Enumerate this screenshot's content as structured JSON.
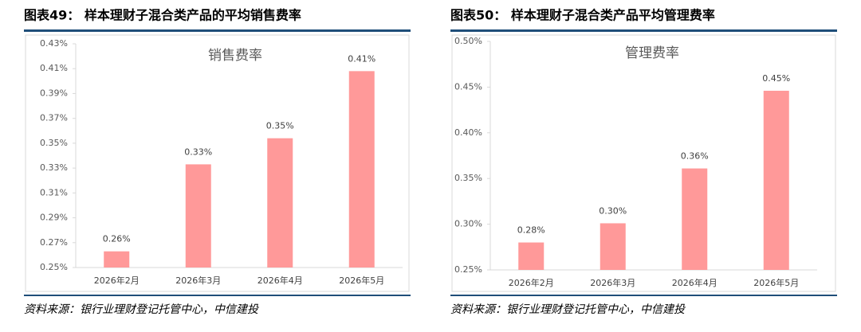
{
  "chart_data": [
    {
      "type": "bar",
      "caption": "图表49：  样本理财子混合类产品的平均销售费率",
      "title": "销售费率",
      "source": "资料来源：银行业理财登记托管中心，中信建投",
      "categories": [
        "2026年2月",
        "2026年3月",
        "2026年4月",
        "2026年5月"
      ],
      "values": [
        0.263,
        0.333,
        0.354,
        0.408
      ],
      "value_labels": [
        "0.26%",
        "0.33%",
        "0.35%",
        "0.41%"
      ],
      "color": "#ff9999",
      "ylim": [
        0.25,
        0.43
      ],
      "yticks": [
        {
          "value": 0.25,
          "label": "0.25%"
        },
        {
          "value": 0.27,
          "label": "0.27%"
        },
        {
          "value": 0.29,
          "label": "0.29%"
        },
        {
          "value": 0.31,
          "label": "0.31%"
        },
        {
          "value": 0.33,
          "label": "0.33%"
        },
        {
          "value": 0.35,
          "label": "0.35%"
        },
        {
          "value": 0.37,
          "label": "0.37%"
        },
        {
          "value": 0.39,
          "label": "0.39%"
        },
        {
          "value": 0.41,
          "label": "0.41%"
        },
        {
          "value": 0.43,
          "label": "0.43%"
        }
      ],
      "grid": false
    },
    {
      "type": "bar",
      "caption": "图表50：  样本理财子混合类产品平均管理费率",
      "title": "管理费率",
      "source": "资料来源：银行业理财登记托管中心，中信建投",
      "categories": [
        "2026年2月",
        "2026年3月",
        "2026年4月",
        "2026年5月"
      ],
      "values": [
        0.28,
        0.301,
        0.361,
        0.446
      ],
      "value_labels": [
        "0.28%",
        "0.30%",
        "0.36%",
        "0.45%"
      ],
      "color": "#ff9999",
      "ylim": [
        0.25,
        0.5
      ],
      "yticks": [
        {
          "value": 0.25,
          "label": "0.25%"
        },
        {
          "value": 0.3,
          "label": "0.30%"
        },
        {
          "value": 0.35,
          "label": "0.35%"
        },
        {
          "value": 0.4,
          "label": "0.40%"
        },
        {
          "value": 0.45,
          "label": "0.45%"
        },
        {
          "value": 0.5,
          "label": "0.50%"
        }
      ],
      "grid": false
    }
  ]
}
